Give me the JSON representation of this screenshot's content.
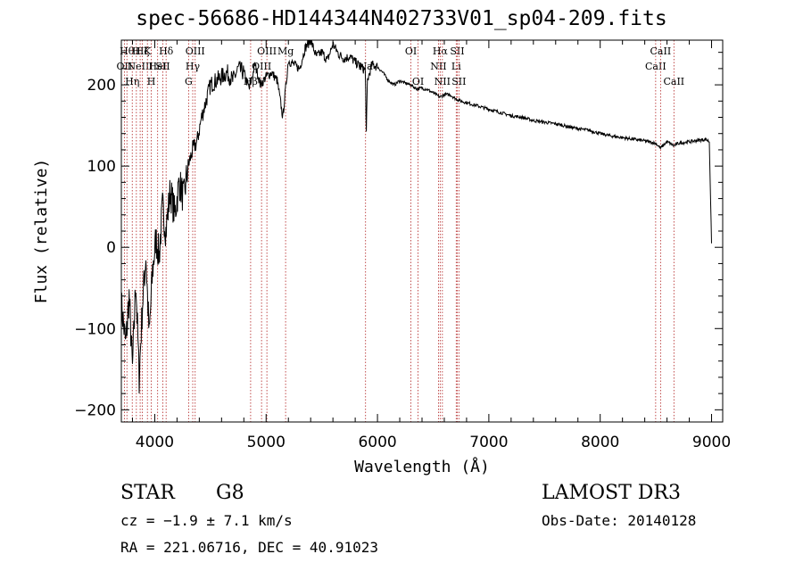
{
  "chart_data": {
    "type": "line",
    "title": "spec-56686-HD144344N402733V01_sp04-209.fits",
    "xlabel": "Wavelength (Å)",
    "ylabel": "Flux (relative)",
    "xlim": [
      3700,
      9100
    ],
    "ylim": [
      -215,
      255
    ],
    "xticks": [
      4000,
      5000,
      6000,
      7000,
      8000,
      9000
    ],
    "yticks": [
      -200,
      -100,
      0,
      100,
      200
    ],
    "ytick_labels": [
      "−200",
      "−100",
      "0",
      "100",
      "200"
    ],
    "series": [
      {
        "name": "flux",
        "x": [
          3700,
          3740,
          3770,
          3800,
          3830,
          3860,
          3890,
          3920,
          3950,
          3980,
          4010,
          4040,
          4070,
          4100,
          4140,
          4180,
          4220,
          4260,
          4300,
          4340,
          4380,
          4420,
          4460,
          4500,
          4550,
          4600,
          4650,
          4700,
          4750,
          4800,
          4850,
          4900,
          4950,
          5000,
          5050,
          5100,
          5150,
          5200,
          5250,
          5300,
          5350,
          5400,
          5450,
          5500,
          5550,
          5600,
          5650,
          5700,
          5750,
          5800,
          5850,
          5890,
          5900,
          5910,
          5950,
          6000,
          6050,
          6100,
          6150,
          6200,
          6250,
          6300,
          6350,
          6400,
          6450,
          6500,
          6560,
          6600,
          6650,
          6700,
          6750,
          6800,
          6900,
          7000,
          7100,
          7200,
          7300,
          7400,
          7500,
          7600,
          7700,
          7800,
          7900,
          8000,
          8100,
          8200,
          8300,
          8400,
          8498,
          8542,
          8600,
          8662,
          8700,
          8800,
          8900,
          8950,
          8980,
          9000
        ],
        "y": [
          -70,
          -120,
          -60,
          -150,
          -40,
          -160,
          -70,
          -10,
          -110,
          -30,
          10,
          -10,
          50,
          20,
          70,
          40,
          80,
          60,
          100,
          120,
          130,
          160,
          180,
          200,
          205,
          210,
          215,
          205,
          220,
          215,
          195,
          225,
          200,
          210,
          215,
          205,
          160,
          230,
          225,
          220,
          245,
          255,
          235,
          240,
          230,
          250,
          238,
          232,
          235,
          228,
          222,
          218,
          140,
          205,
          225,
          222,
          215,
          205,
          200,
          205,
          202,
          200,
          195,
          196,
          194,
          190,
          185,
          188,
          188,
          183,
          180,
          178,
          174,
          170,
          166,
          162,
          160,
          156,
          154,
          152,
          149,
          146,
          144,
          140,
          137,
          135,
          133,
          131,
          128,
          122,
          130,
          125,
          128,
          130,
          132,
          133,
          130,
          5
        ]
      }
    ],
    "lines": [
      {
        "wavelength": 3727,
        "label": "OII",
        "row": 1
      },
      {
        "wavelength": 3750,
        "label": "Hθ",
        "row": 0
      },
      {
        "wavelength": 3798,
        "label": "Hη",
        "row": 2
      },
      {
        "wavelength": 3835,
        "label": "H",
        "row": 0
      },
      {
        "wavelength": 3869,
        "label": "NeIII",
        "row": 1
      },
      {
        "wavelength": 3889,
        "label": "Hζ",
        "row": 0
      },
      {
        "wavelength": 3934,
        "label": "K",
        "row": 0
      },
      {
        "wavelength": 3969,
        "label": "H",
        "row": 2
      },
      {
        "wavelength": 4026,
        "label": "HeI",
        "row": 1
      },
      {
        "wavelength": 4072,
        "label": "SII",
        "row": 1
      },
      {
        "wavelength": 4102,
        "label": "Hδ",
        "row": 0
      },
      {
        "wavelength": 4304,
        "label": "G",
        "row": 2
      },
      {
        "wavelength": 4341,
        "label": "Hγ",
        "row": 1
      },
      {
        "wavelength": 4363,
        "label": "OIII",
        "row": 0
      },
      {
        "wavelength": 4861,
        "label": "Hβ",
        "row": 2
      },
      {
        "wavelength": 4959,
        "label": "OIII",
        "row": 1
      },
      {
        "wavelength": 5007,
        "label": "OIII",
        "row": 0
      },
      {
        "wavelength": 5175,
        "label": "Mg",
        "row": 0
      },
      {
        "wavelength": 5893,
        "label": "Na",
        "row": 1
      },
      {
        "wavelength": 6300,
        "label": "OI",
        "row": 0
      },
      {
        "wavelength": 6364,
        "label": "OI",
        "row": 2
      },
      {
        "wavelength": 6548,
        "label": "NII",
        "row": 1
      },
      {
        "wavelength": 6563,
        "label": "Hα",
        "row": 0
      },
      {
        "wavelength": 6583,
        "label": "NII",
        "row": 2
      },
      {
        "wavelength": 6707,
        "label": "Li",
        "row": 1
      },
      {
        "wavelength": 6716,
        "label": "SII",
        "row": 0
      },
      {
        "wavelength": 6731,
        "label": "SII",
        "row": 2
      },
      {
        "wavelength": 8498,
        "label": "CaII",
        "row": 1
      },
      {
        "wavelength": 8542,
        "label": "CaII",
        "row": 0
      },
      {
        "wavelength": 8662,
        "label": "CaII",
        "row": 2
      }
    ]
  },
  "info": {
    "class": "STAR",
    "subclass": "G8",
    "survey": "LAMOST DR3",
    "redshift": "cz = −1.9 ± 7.1 km/s",
    "obs_date": "Obs-Date: 20140128",
    "coords": "RA = 221.06716, DEC =  40.91023"
  },
  "colors": {
    "spectrum": "#000000",
    "line_markers": "#b22222",
    "axes": "#000000"
  }
}
